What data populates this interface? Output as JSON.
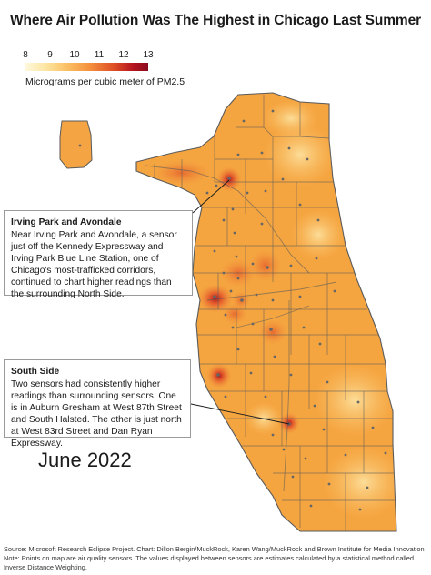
{
  "title": "Where Air Pollution Was The Highest in Chicago Last Summer",
  "legend": {
    "ticks": [
      "8",
      "9",
      "10",
      "11",
      "12",
      "13"
    ],
    "caption": "Micrograms per cubic meter of PM2.5"
  },
  "annotations": {
    "irving": {
      "heading": "Irving Park and Avondale",
      "body": "Near Irving Park and Avondale, a sensor just off the Kennedy Expressway and Irving Park Blue Line Station, one of Chicago's most-trafficked corridors, continued to chart higher readings than the surrounding North Side."
    },
    "south": {
      "heading": "South Side",
      "body": "Two sensors had consistently higher readings than surrounding sensors. One is in Auburn Gresham at West 87th Street and South Halsted. The other is just north at West 83rd Street and Dan Ryan Expressway."
    }
  },
  "date_label": "June 2022",
  "footer": {
    "line1": "Source: Microsoft Research Eclipse Project. Chart: Dillon Bergin/MuckRock, Karen Wang/MuckRock and Brown Institute for Media Innovation",
    "line2": "Note: Points on map are air quality sensors. The values displayed between sensors are estimates calculated by a statistical method called Inverse Distance Weighting."
  },
  "colors": {
    "low": "#fff8dc",
    "mid": "#f4a040",
    "high": "#8a0c1f",
    "base_fill": "#f5a540",
    "boundary": "#5a5a5a",
    "sensor": "#666666"
  }
}
